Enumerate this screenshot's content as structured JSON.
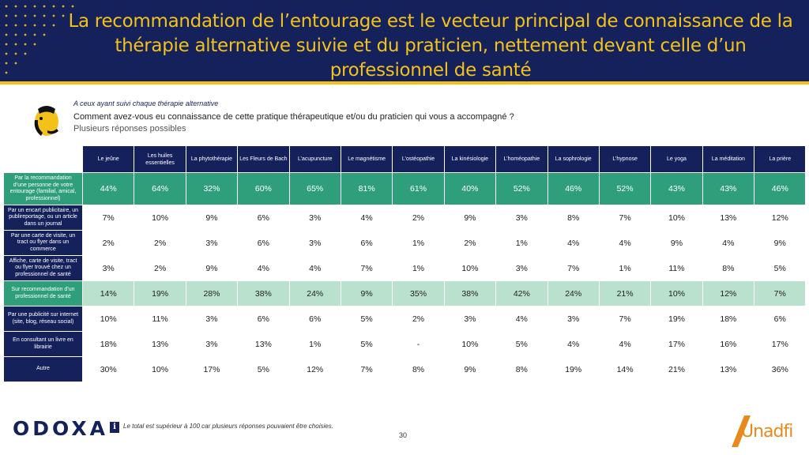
{
  "header": {
    "title": "La recommandation de l’entourage est le vecteur principal de connaissance de la thérapie alternative suivie et du praticien, nettement devant celle d’un professionnel de santé"
  },
  "question": {
    "subtitle": "A ceux ayant suivi chaque thérapie alternative",
    "text": "Comment avez-vous eu connaissance de cette pratique thérapeutique et/ou du praticien qui vous a accompagné ?",
    "note": "Plusieurs réponses possibles"
  },
  "table": {
    "columns": [
      "Le jeûne",
      "Les huiles essentielles",
      "La phytothérapie",
      "Les Fleurs de Bach",
      "L’acupuncture",
      "Le magnétisme",
      "L’ostéopathie",
      "La kinésiologie",
      "L’homéopathie",
      "La sophrologie",
      "L’hypnose",
      "Le yoga",
      "La méditation",
      "La prière"
    ],
    "rows": [
      {
        "label": "Par la recommandation d’une personne de votre entourage (familial, amical, professionnel)",
        "style": "hl-dark",
        "values": [
          "44%",
          "64%",
          "32%",
          "60%",
          "65%",
          "81%",
          "61%",
          "40%",
          "52%",
          "46%",
          "52%",
          "43%",
          "43%",
          "46%"
        ]
      },
      {
        "label": "Par un encart publicitaire, un publireportage, ou un article dans un journal",
        "style": "",
        "values": [
          "7%",
          "10%",
          "9%",
          "6%",
          "3%",
          "4%",
          "2%",
          "9%",
          "3%",
          "8%",
          "7%",
          "10%",
          "13%",
          "12%"
        ]
      },
      {
        "label": "Par une carte de visite, un tract ou flyer dans un commerce",
        "style": "",
        "values": [
          "2%",
          "2%",
          "3%",
          "6%",
          "3%",
          "6%",
          "1%",
          "2%",
          "1%",
          "4%",
          "4%",
          "9%",
          "4%",
          "9%"
        ]
      },
      {
        "label": "Affiche, carte de visite, tract ou flyer trouvé chez un professionnel de santé",
        "style": "",
        "values": [
          "3%",
          "2%",
          "9%",
          "4%",
          "4%",
          "7%",
          "1%",
          "10%",
          "3%",
          "7%",
          "1%",
          "11%",
          "8%",
          "5%"
        ]
      },
      {
        "label": "Sur recommandation d’un professionnel de santé",
        "style": "hl-light",
        "values": [
          "14%",
          "19%",
          "28%",
          "38%",
          "24%",
          "9%",
          "35%",
          "38%",
          "42%",
          "24%",
          "21%",
          "10%",
          "12%",
          "7%"
        ]
      },
      {
        "label": "Par une publicité sur internet (site, blog, réseau social)",
        "style": "",
        "values": [
          "10%",
          "11%",
          "3%",
          "6%",
          "6%",
          "5%",
          "2%",
          "3%",
          "4%",
          "3%",
          "7%",
          "19%",
          "18%",
          "6%"
        ]
      },
      {
        "label": "En consultant un livre en librairie",
        "style": "",
        "values": [
          "18%",
          "13%",
          "3%",
          "13%",
          "1%",
          "5%",
          "-",
          "10%",
          "5%",
          "4%",
          "4%",
          "17%",
          "16%",
          "17%"
        ]
      },
      {
        "label": "Autre",
        "style": "",
        "values": [
          "30%",
          "10%",
          "17%",
          "5%",
          "12%",
          "7%",
          "8%",
          "9%",
          "8%",
          "19%",
          "14%",
          "21%",
          "13%",
          "36%"
        ]
      }
    ]
  },
  "footer": {
    "brand": "ODOXA",
    "info_icon": "i",
    "note": "Le total est supérieur à 100 car plusieurs réponses pouvaient être choisies.",
    "page": "30",
    "partner_logo": "Unadfi"
  },
  "colors": {
    "navy": "#15215a",
    "gold": "#f2c21b",
    "green_dark": "#2f9e7b",
    "green_light": "#b9e1cd",
    "orange": "#e8891d"
  }
}
